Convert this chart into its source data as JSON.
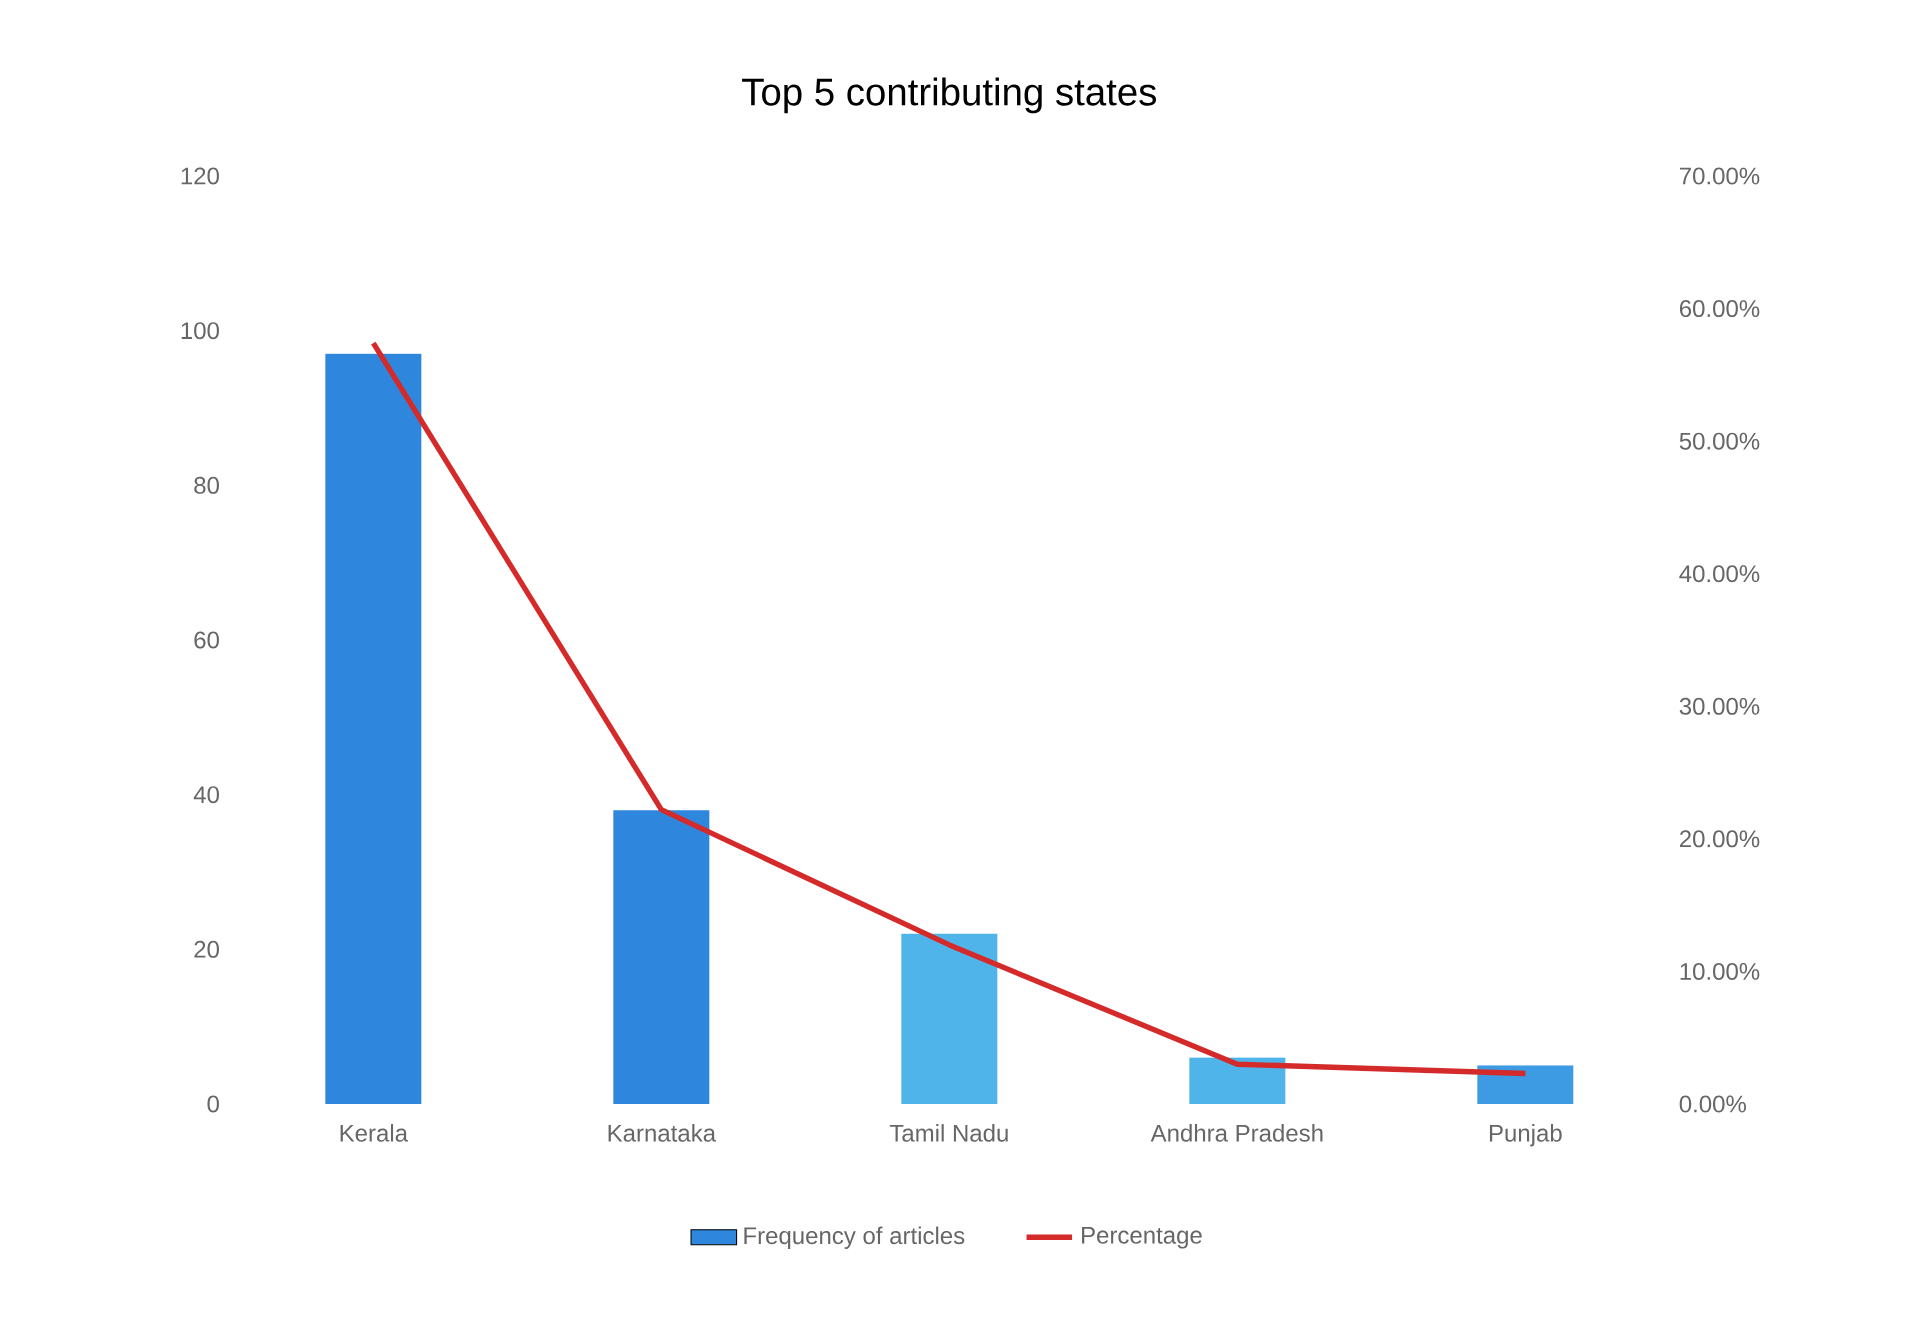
{
  "chart_data": {
    "type": "bar",
    "title": "Top 5 contributing states",
    "categories": [
      "Kerala",
      "Karnataka",
      "Tamil Nadu",
      "Andhra Pradesh",
      "Punjab"
    ],
    "series": [
      {
        "name": "Frequency of articles",
        "colors": [
          "#2f86dd",
          "#2f86dd",
          "#4fb4ea",
          "#4fb4ea",
          "#3d9be3"
        ],
        "values": [
          97,
          38,
          22,
          6,
          5
        ]
      },
      {
        "name": "Percentage",
        "type": "line",
        "axis": "y2",
        "color": "#d42a2a",
        "values": [
          57.4,
          22.2,
          12.0,
          3.0,
          2.3
        ]
      }
    ],
    "ylim": [
      0,
      120
    ],
    "yticks": [
      0,
      20,
      40,
      60,
      80,
      100,
      120
    ],
    "y2lim": [
      0,
      70
    ],
    "y2ticks": [
      {
        "value": 0,
        "label": "0.00%"
      },
      {
        "value": 10,
        "label": "10.00%"
      },
      {
        "value": 20,
        "label": "20.00%"
      },
      {
        "value": 30,
        "label": "30.00%"
      },
      {
        "value": 40,
        "label": "40.00%"
      },
      {
        "value": 50,
        "label": "50.00%"
      },
      {
        "value": 60,
        "label": "60.00%"
      },
      {
        "value": 70,
        "label": "70.00%"
      }
    ],
    "legend": "bottom"
  }
}
